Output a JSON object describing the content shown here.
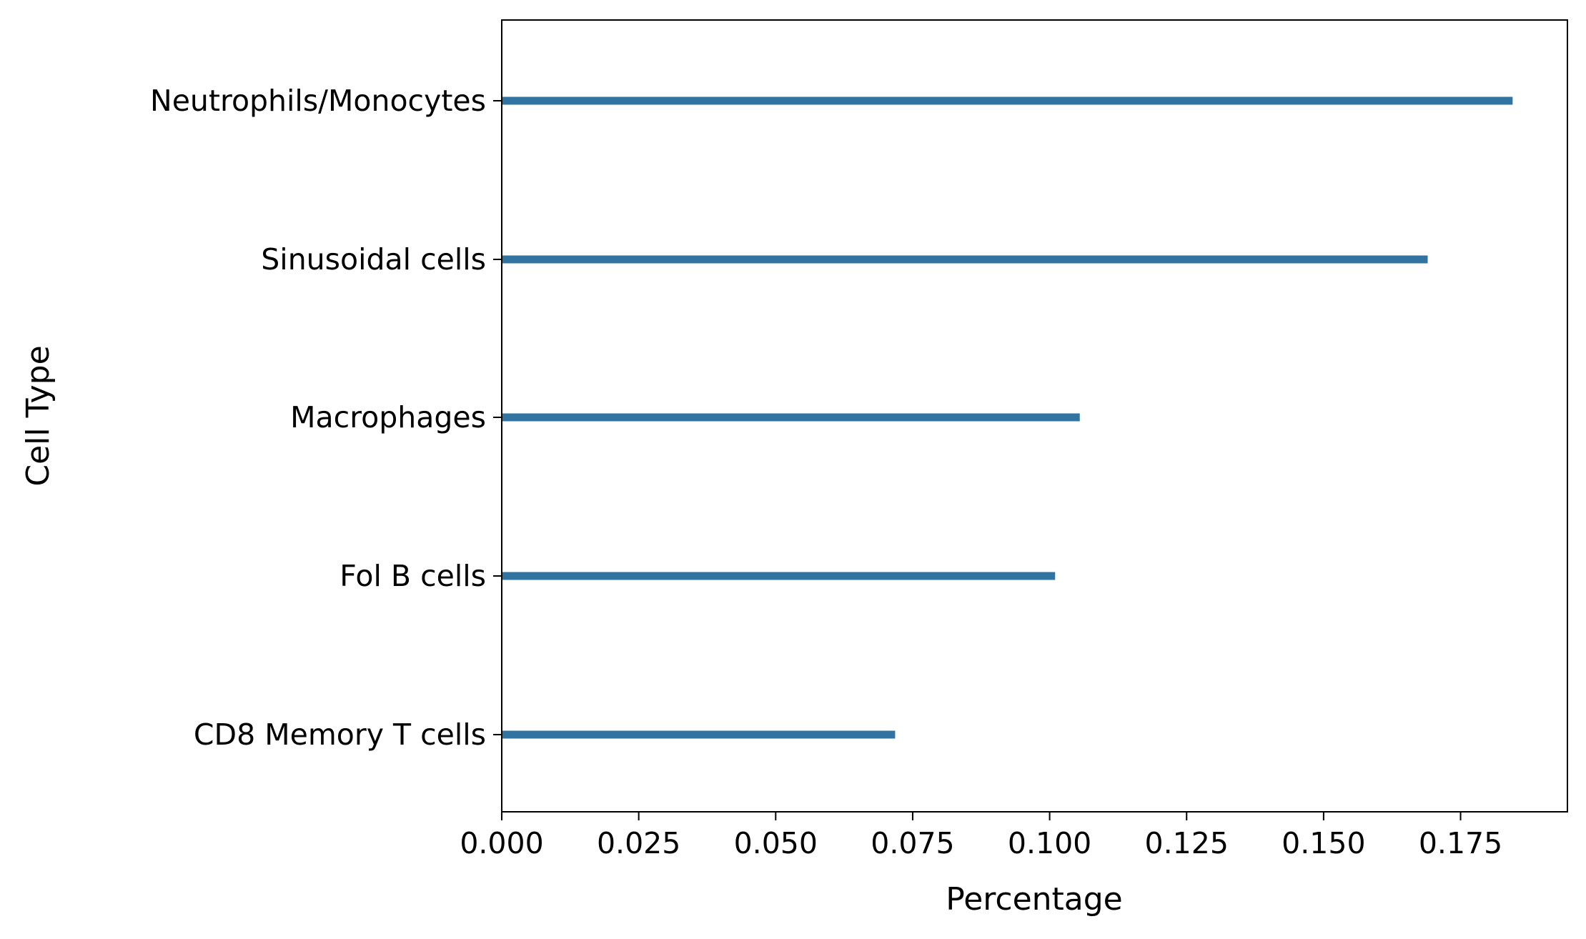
{
  "chart_data": {
    "type": "bar",
    "orientation": "horizontal",
    "categories": [
      "Neutrophils/Monocytes",
      "Sinusoidal cells",
      "Macrophages",
      "Fol B cells",
      "CD8 Memory T cells"
    ],
    "values": [
      0.1845,
      0.169,
      0.1055,
      0.101,
      0.0718
    ],
    "xlabel": "Percentage",
    "ylabel": "Cell Type",
    "xlim": [
      0,
      0.1945
    ],
    "xticks": [
      "0.000",
      "0.025",
      "0.050",
      "0.075",
      "0.100",
      "0.125",
      "0.150",
      "0.175"
    ],
    "grid": false,
    "bar_color": "#3274a1"
  }
}
